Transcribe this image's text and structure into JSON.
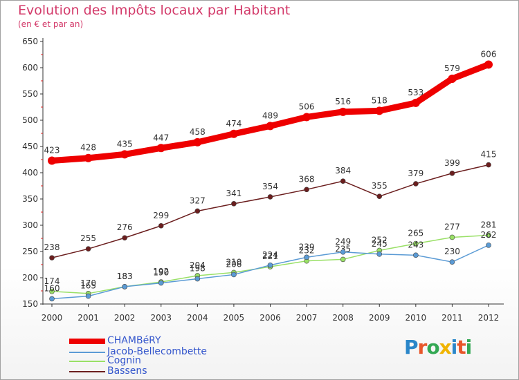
{
  "title": "Evolution des Impôts locaux par Habitant",
  "subtitle": "(en € et par an)",
  "brand": {
    "text": "Proxiti",
    "letter_colors": [
      "#2a86c9",
      "#e8562a",
      "#33a853",
      "#f0b400",
      "#2a86c9",
      "#e8562a",
      "#33a853"
    ]
  },
  "chart_data": {
    "type": "line",
    "x": [
      "2000",
      "2001",
      "2002",
      "2003",
      "2004",
      "2005",
      "2006",
      "2007",
      "2008",
      "2009",
      "2010",
      "2011",
      "2012"
    ],
    "ylim": [
      150,
      650
    ],
    "yticks": [
      "150",
      "200",
      "250",
      "300",
      "350",
      "400",
      "450",
      "500",
      "550",
      "600",
      "650"
    ],
    "grid": false,
    "series": [
      {
        "name": "CHAMBéRY",
        "color": "#ee0000",
        "values": [
          423,
          428,
          435,
          447,
          458,
          474,
          489,
          506,
          516,
          518,
          533,
          579,
          606
        ],
        "labels": [
          "423",
          "428",
          "435",
          "447",
          "458",
          "474",
          "489",
          "506",
          "516",
          "518",
          "533",
          "579",
          "606"
        ]
      },
      {
        "name": "Jacob-Bellecombette",
        "color": "#5b9bd5",
        "values": [
          160,
          165,
          183,
          190,
          198,
          206,
          224,
          239,
          249,
          245,
          243,
          230,
          262
        ],
        "labels": [
          "160",
          "165",
          "183",
          "190",
          "198",
          "206",
          "224",
          "239",
          "249",
          "245",
          "243",
          "230",
          "262"
        ]
      },
      {
        "name": "Cognin",
        "color": "#99e066",
        "values": [
          174,
          170,
          183,
          192,
          204,
          210,
          221,
          232,
          235,
          252,
          265,
          277,
          281
        ],
        "labels": [
          "174",
          "170",
          "183",
          "192",
          "204",
          "210",
          "221",
          "232",
          "235",
          "252",
          "265",
          "277",
          "281"
        ]
      },
      {
        "name": "Bassens",
        "color": "#6b1e1e",
        "values": [
          238,
          255,
          276,
          299,
          327,
          341,
          354,
          368,
          384,
          355,
          379,
          399,
          415
        ],
        "labels": [
          "238",
          "255",
          "276",
          "299",
          "327",
          "341",
          "354",
          "368",
          "384",
          "355",
          "379",
          "399",
          "415"
        ]
      }
    ]
  }
}
